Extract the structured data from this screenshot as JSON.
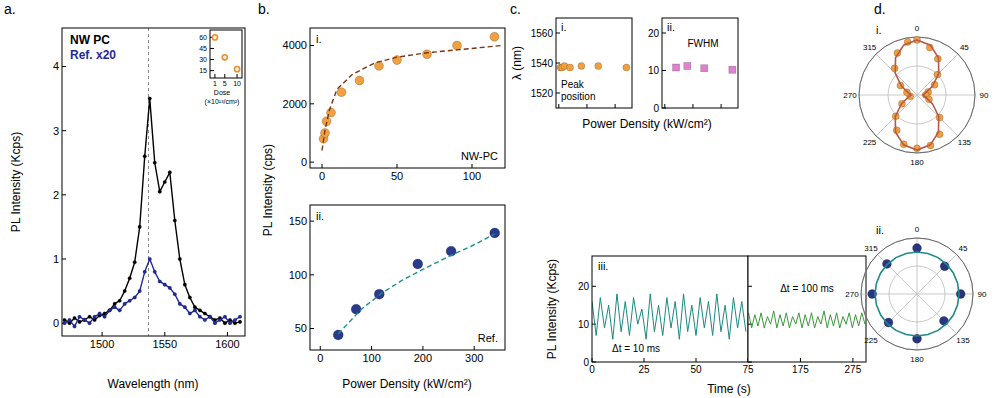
{
  "chart_data": [
    {
      "type": "line",
      "panel_label": "a.",
      "x_label": "Wavelength (nm)",
      "y_label": "PL Intensity (Kcps)",
      "xlim": [
        1468,
        1614
      ],
      "xticks": [
        1500,
        1550,
        1600
      ],
      "ylim": [
        -0.2,
        4.6
      ],
      "yticks": [
        0,
        1,
        2,
        3,
        4
      ],
      "legend": "upper left",
      "vlines": [
        1537
      ],
      "x": [
        1470,
        1474,
        1478,
        1482,
        1486,
        1490,
        1494,
        1498,
        1502,
        1506,
        1510,
        1514,
        1518,
        1522,
        1526,
        1530,
        1534,
        1538,
        1542,
        1546,
        1550,
        1554,
        1558,
        1562,
        1566,
        1570,
        1574,
        1578,
        1582,
        1586,
        1590,
        1594,
        1598,
        1602,
        1606,
        1610
      ],
      "series": [
        {
          "name": "NW PC",
          "color": "#000000",
          "marker": "circle",
          "line_style": "solid",
          "values": [
            0.05,
            0,
            0.08,
            0.02,
            0.05,
            0.1,
            0.05,
            0.12,
            0.15,
            0.2,
            0.3,
            0.35,
            0.5,
            0.7,
            0.95,
            1.5,
            2.6,
            3.5,
            2.5,
            2.05,
            2.2,
            2.35,
            1.6,
            1.0,
            0.6,
            0.4,
            0.25,
            0.2,
            0.15,
            0.1,
            0.05,
            0.08,
            0,
            0.05,
            0,
            0.02
          ]
        },
        {
          "name": "Ref. x20",
          "color": "#1f2a9e",
          "marker": "circle",
          "line_style": "solid",
          "values": [
            0,
            0.05,
            -0.05,
            0.1,
            0.05,
            0,
            0.1,
            0.15,
            0.1,
            0.2,
            0.25,
            0.2,
            0.3,
            0.35,
            0.4,
            0.5,
            0.8,
            1.0,
            0.8,
            0.65,
            0.6,
            0.55,
            0.45,
            0.3,
            0.25,
            0.15,
            0.2,
            0.1,
            0.05,
            0.1,
            0,
            0.05,
            0.1,
            0,
            0.05,
            0.1
          ]
        }
      ]
    },
    {
      "type": "scatter",
      "x_label": [
        "Dose",
        "(×10¹³/cm²)"
      ],
      "xlim": [
        -1,
        12
      ],
      "xticks": [
        1,
        5,
        10
      ],
      "ylim": [
        5,
        70
      ],
      "yticks": [
        15,
        30,
        45,
        60
      ],
      "series": [
        {
          "color": "#e8922e",
          "marker": "open_circle",
          "line_style": "none",
          "x": [
            1,
            5,
            10
          ],
          "values": [
            60,
            33,
            17
          ]
        }
      ]
    },
    {
      "type": "scatter",
      "panel_label": "b.",
      "sub_label": "i.",
      "annotations": [
        "NW-PC"
      ],
      "y_label": "PL Intensity (cps)",
      "xlim": [
        -8,
        122
      ],
      "xticks": [
        0,
        50,
        100
      ],
      "ylim": [
        -200,
        4600
      ],
      "yticks": [
        0,
        2000,
        4000
      ],
      "series": [
        {
          "color": "#f0a040",
          "marker": "circle",
          "line_style": "none",
          "x": [
            1,
            2,
            3,
            6,
            13,
            25,
            38,
            50,
            70,
            90,
            115
          ],
          "values": [
            800,
            1000,
            1400,
            1700,
            2400,
            2800,
            3300,
            3500,
            3700,
            4000,
            4300
          ]
        },
        {
          "color": "#7a3510",
          "marker": "none",
          "line_style": "dashed",
          "x": [
            0,
            2,
            5,
            10,
            20,
            35,
            50,
            70,
            90,
            110,
            120
          ],
          "values": [
            400,
            1100,
            1800,
            2500,
            3000,
            3400,
            3600,
            3750,
            3850,
            3950,
            4000
          ]
        }
      ]
    },
    {
      "type": "scatter",
      "sub_label": "ii.",
      "annotations": [
        "Ref."
      ],
      "x_label": "Power Density (kW/cm²)",
      "xlim": [
        -20,
        360
      ],
      "xticks": [
        0,
        100,
        200,
        300
      ],
      "ylim": [
        30,
        165
      ],
      "yticks": [
        50,
        100,
        150
      ],
      "series": [
        {
          "color": "#2a3a8c",
          "marker": "circle",
          "line_style": "none",
          "x": [
            35,
            70,
            115,
            190,
            255,
            340
          ],
          "values": [
            44,
            68,
            82,
            110,
            122,
            139
          ]
        },
        {
          "color": "#1f8f8f",
          "marker": "none",
          "line_style": "dashed",
          "x": [
            35,
            80,
            120,
            160,
            200,
            250,
            300,
            340
          ],
          "values": [
            45,
            68,
            83,
            95,
            105,
            117,
            128,
            138
          ]
        }
      ]
    },
    {
      "type": "scatter",
      "panel_label": "c.",
      "sub_label": "i.",
      "annotations": [
        "Peak",
        "position"
      ],
      "y_label": "λ (nm)",
      "x_label": "Power Density (kW/cm²)",
      "tick_labels": "y",
      "xlim": [
        -5,
        130
      ],
      "xticks": [
        0,
        50,
        100
      ],
      "ylim": [
        1510,
        1570
      ],
      "yticks": [
        1520,
        1540,
        1560
      ],
      "series": [
        {
          "color": "#f0a040",
          "marker": "circle",
          "line_style": "none",
          "x": [
            3,
            6,
            10,
            20,
            40,
            70,
            120
          ],
          "values": [
            1537,
            1537,
            1538,
            1537,
            1538,
            1538,
            1537
          ]
        }
      ]
    },
    {
      "type": "scatter",
      "sub_label": "ii.",
      "annotations": [
        "FWHM"
      ],
      "tick_labels": "y",
      "xlim": [
        -5,
        130
      ],
      "xticks": [
        0,
        50,
        100
      ],
      "ylim": [
        0,
        24
      ],
      "yticks": [
        0,
        10,
        20
      ],
      "series": [
        {
          "color": "#e080d0",
          "marker": "square",
          "line_style": "none",
          "x": [
            20,
            40,
            70,
            120
          ],
          "values": [
            10.8,
            11.2,
            10.6,
            10.2
          ]
        }
      ]
    },
    {
      "type": "line",
      "sub_label": "iii.",
      "annotations": [
        "Δt = 10 ms"
      ],
      "y_label": "PL Intensity (Kcps)",
      "x_label": "Time (s)",
      "xlim": [
        0,
        75
      ],
      "xticks": [
        0,
        25,
        50,
        75
      ],
      "ylim": [
        0,
        28
      ],
      "yticks": [
        0,
        10,
        20
      ],
      "series": [
        {
          "color": "#1b8a80",
          "marker": "none",
          "line_style": "solid",
          "x": [
            0,
            2,
            4,
            6,
            8,
            10,
            12,
            14,
            16,
            18,
            20,
            22,
            24,
            26,
            28,
            30,
            32,
            34,
            36,
            38,
            40,
            42,
            44,
            46,
            48,
            50,
            52,
            54,
            56,
            58,
            60,
            62,
            64,
            66,
            68,
            70,
            72,
            74
          ],
          "values": [
            16,
            7,
            17,
            9,
            15,
            6,
            18,
            8,
            16,
            7,
            17,
            10,
            14,
            6,
            18,
            8,
            15,
            7,
            17,
            9,
            16,
            6,
            18,
            8,
            15,
            7,
            17,
            9,
            16,
            7,
            18,
            8,
            15,
            6,
            17,
            9,
            16,
            8
          ]
        }
      ]
    },
    {
      "type": "line",
      "annotations": [
        "Δt = 100 ms"
      ],
      "tick_labels": "x",
      "xlim": [
        75,
        300
      ],
      "xticks": [
        175,
        275
      ],
      "ylim": [
        0,
        28
      ],
      "yticks": [
        0,
        10,
        20
      ],
      "series": [
        {
          "color": "#3a9a3a",
          "marker": "none",
          "line_style": "solid",
          "x": [
            76,
            82,
            88,
            94,
            100,
            106,
            112,
            118,
            124,
            130,
            136,
            142,
            148,
            154,
            160,
            166,
            172,
            178,
            184,
            190,
            196,
            202,
            208,
            214,
            220,
            226,
            232,
            238,
            244,
            250,
            256,
            262,
            268,
            274,
            280,
            286,
            292,
            298
          ],
          "values": [
            13,
            9,
            12.5,
            9.5,
            13,
            9,
            12,
            10,
            13.5,
            9,
            12.5,
            9.5,
            13,
            9,
            12,
            10,
            13,
            9,
            12.5,
            9.5,
            13,
            9,
            12,
            10,
            13.5,
            9,
            12.5,
            9.5,
            13,
            9,
            12,
            10,
            13,
            9,
            12.5,
            9.5,
            13,
            10
          ]
        }
      ]
    },
    {
      "type": "polar",
      "panel_label": "d.",
      "sub_label": "i.",
      "tick_labels": "x",
      "rlim": [
        0,
        1
      ],
      "rticks": [
        0.5,
        1
      ],
      "thetaticks": [
        0,
        45,
        90,
        135,
        180,
        225,
        270,
        315
      ],
      "series": [
        {
          "color": "#f0a040",
          "marker": "circle",
          "line_style": "none",
          "theta": [
            0,
            15,
            30,
            45,
            60,
            75,
            90,
            110,
            135,
            150,
            165,
            180,
            195,
            210,
            225,
            240,
            260,
            285,
            300,
            320,
            335,
            350
          ],
          "values": [
            0.95,
            0.85,
            0.72,
            0.5,
            0.35,
            0.2,
            0.15,
            0.22,
            0.55,
            0.78,
            0.9,
            0.92,
            0.88,
            0.7,
            0.52,
            0.3,
            0.12,
            0.18,
            0.33,
            0.6,
            0.8,
            0.93
          ]
        },
        {
          "color": "#b85a48",
          "marker": "none",
          "line_style": "solid",
          "theta": [
            0,
            15,
            30,
            45,
            60,
            75,
            90,
            105,
            120,
            135,
            150,
            165,
            180,
            195,
            210,
            225,
            240,
            255,
            270,
            285,
            300,
            315,
            330,
            345
          ],
          "values": [
            0.95,
            0.89,
            0.74,
            0.53,
            0.31,
            0.16,
            0.1,
            0.16,
            0.31,
            0.53,
            0.74,
            0.89,
            0.95,
            0.89,
            0.74,
            0.53,
            0.31,
            0.16,
            0.1,
            0.16,
            0.31,
            0.53,
            0.74,
            0.89
          ]
        }
      ]
    },
    {
      "type": "polar",
      "sub_label": "ii.",
      "tick_labels": "x",
      "rlim": [
        0,
        1
      ],
      "rticks": [
        0.5,
        1
      ],
      "thetaticks": [
        0,
        45,
        90,
        135,
        180,
        225,
        270,
        315
      ],
      "series": [
        {
          "color": "#2a3580",
          "marker": "circle",
          "line_style": "none",
          "theta": [
            0,
            45,
            90,
            135,
            180,
            225,
            270,
            315
          ],
          "values": [
            0.82,
            0.7,
            0.78,
            0.68,
            0.8,
            0.72,
            0.8,
            0.76
          ]
        },
        {
          "color": "#1f8a8a",
          "marker": "none",
          "line_style": "solid",
          "theta": [
            0,
            15,
            30,
            45,
            60,
            75,
            90,
            105,
            120,
            135,
            150,
            165,
            180,
            195,
            210,
            225,
            240,
            255,
            270,
            285,
            300,
            315,
            330,
            345
          ],
          "values": [
            0.75,
            0.75,
            0.75,
            0.75,
            0.75,
            0.75,
            0.75,
            0.75,
            0.75,
            0.75,
            0.75,
            0.75,
            0.75,
            0.75,
            0.75,
            0.75,
            0.75,
            0.75,
            0.75,
            0.75,
            0.75,
            0.75,
            0.75,
            0.75
          ]
        }
      ]
    }
  ]
}
